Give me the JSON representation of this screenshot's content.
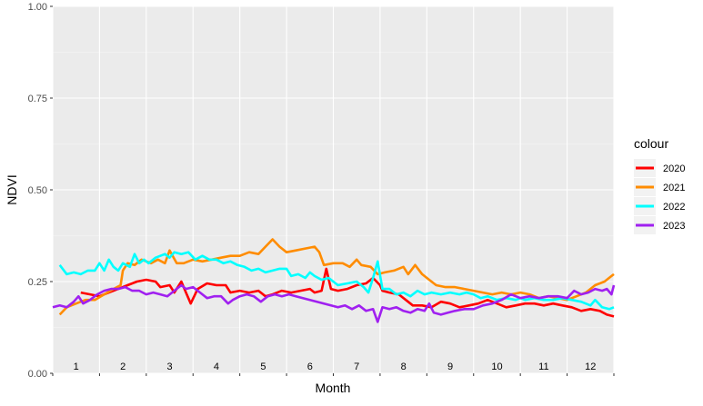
{
  "chart_data": {
    "type": "line",
    "xlabel": "Month",
    "ylabel": "NDVI",
    "ylim": [
      0,
      1
    ],
    "xlim": [
      0,
      12
    ],
    "yticks": [
      {
        "value": 0.0,
        "label": "0.00"
      },
      {
        "value": 0.25,
        "label": "0.25"
      },
      {
        "value": 0.5,
        "label": "0.50"
      },
      {
        "value": 0.75,
        "label": "0.75"
      },
      {
        "value": 1.0,
        "label": "1.00"
      }
    ],
    "month_labels": [
      "1",
      "2",
      "3",
      "4",
      "5",
      "6",
      "7",
      "8",
      "9",
      "10",
      "11",
      "12"
    ],
    "grid": true,
    "legend": {
      "title": "colour",
      "position": "right"
    },
    "series": [
      {
        "name": "2020",
        "color": "#ff0000",
        "points": [
          [
            0.6,
            0.22
          ],
          [
            0.8,
            0.215
          ],
          [
            1.0,
            0.21
          ],
          [
            1.2,
            0.22
          ],
          [
            1.4,
            0.23
          ],
          [
            1.6,
            0.24
          ],
          [
            1.8,
            0.25
          ],
          [
            2.0,
            0.255
          ],
          [
            2.2,
            0.25
          ],
          [
            2.3,
            0.235
          ],
          [
            2.5,
            0.24
          ],
          [
            2.6,
            0.22
          ],
          [
            2.75,
            0.25
          ],
          [
            2.85,
            0.22
          ],
          [
            2.95,
            0.19
          ],
          [
            3.1,
            0.23
          ],
          [
            3.3,
            0.245
          ],
          [
            3.5,
            0.24
          ],
          [
            3.7,
            0.24
          ],
          [
            3.8,
            0.22
          ],
          [
            4.0,
            0.225
          ],
          [
            4.2,
            0.22
          ],
          [
            4.4,
            0.225
          ],
          [
            4.55,
            0.21
          ],
          [
            4.7,
            0.215
          ],
          [
            4.9,
            0.225
          ],
          [
            5.1,
            0.22
          ],
          [
            5.3,
            0.225
          ],
          [
            5.5,
            0.23
          ],
          [
            5.6,
            0.22
          ],
          [
            5.75,
            0.225
          ],
          [
            5.85,
            0.285
          ],
          [
            5.95,
            0.23
          ],
          [
            6.1,
            0.225
          ],
          [
            6.3,
            0.23
          ],
          [
            6.5,
            0.24
          ],
          [
            6.7,
            0.245
          ],
          [
            6.85,
            0.26
          ],
          [
            7.0,
            0.24
          ],
          [
            7.05,
            0.225
          ],
          [
            7.2,
            0.22
          ],
          [
            7.4,
            0.215
          ],
          [
            7.55,
            0.2
          ],
          [
            7.7,
            0.185
          ],
          [
            7.9,
            0.185
          ],
          [
            8.1,
            0.18
          ],
          [
            8.3,
            0.195
          ],
          [
            8.5,
            0.19
          ],
          [
            8.7,
            0.18
          ],
          [
            8.9,
            0.185
          ],
          [
            9.1,
            0.19
          ],
          [
            9.3,
            0.2
          ],
          [
            9.5,
            0.19
          ],
          [
            9.7,
            0.18
          ],
          [
            9.9,
            0.185
          ],
          [
            10.1,
            0.19
          ],
          [
            10.3,
            0.19
          ],
          [
            10.5,
            0.185
          ],
          [
            10.7,
            0.19
          ],
          [
            10.9,
            0.185
          ],
          [
            11.1,
            0.18
          ],
          [
            11.3,
            0.17
          ],
          [
            11.5,
            0.175
          ],
          [
            11.7,
            0.17
          ],
          [
            11.85,
            0.16
          ],
          [
            12.0,
            0.155
          ]
        ]
      },
      {
        "name": "2021",
        "color": "#ff8c00",
        "points": [
          [
            0.15,
            0.16
          ],
          [
            0.3,
            0.18
          ],
          [
            0.5,
            0.19
          ],
          [
            0.7,
            0.2
          ],
          [
            0.9,
            0.2
          ],
          [
            1.1,
            0.215
          ],
          [
            1.3,
            0.23
          ],
          [
            1.45,
            0.24
          ],
          [
            1.5,
            0.28
          ],
          [
            1.6,
            0.3
          ],
          [
            1.75,
            0.295
          ],
          [
            1.9,
            0.31
          ],
          [
            2.1,
            0.3
          ],
          [
            2.25,
            0.31
          ],
          [
            2.4,
            0.3
          ],
          [
            2.5,
            0.335
          ],
          [
            2.65,
            0.3
          ],
          [
            2.8,
            0.3
          ],
          [
            3.0,
            0.31
          ],
          [
            3.2,
            0.305
          ],
          [
            3.4,
            0.31
          ],
          [
            3.6,
            0.315
          ],
          [
            3.8,
            0.32
          ],
          [
            4.0,
            0.32
          ],
          [
            4.2,
            0.33
          ],
          [
            4.4,
            0.325
          ],
          [
            4.55,
            0.345
          ],
          [
            4.7,
            0.365
          ],
          [
            4.85,
            0.345
          ],
          [
            5.0,
            0.33
          ],
          [
            5.2,
            0.335
          ],
          [
            5.4,
            0.34
          ],
          [
            5.6,
            0.345
          ],
          [
            5.7,
            0.33
          ],
          [
            5.8,
            0.295
          ],
          [
            6.0,
            0.3
          ],
          [
            6.2,
            0.3
          ],
          [
            6.35,
            0.29
          ],
          [
            6.5,
            0.31
          ],
          [
            6.6,
            0.295
          ],
          [
            6.8,
            0.29
          ],
          [
            6.95,
            0.27
          ],
          [
            7.1,
            0.275
          ],
          [
            7.3,
            0.28
          ],
          [
            7.5,
            0.29
          ],
          [
            7.6,
            0.27
          ],
          [
            7.75,
            0.295
          ],
          [
            7.9,
            0.27
          ],
          [
            8.05,
            0.255
          ],
          [
            8.2,
            0.24
          ],
          [
            8.4,
            0.235
          ],
          [
            8.6,
            0.235
          ],
          [
            8.8,
            0.23
          ],
          [
            9.0,
            0.225
          ],
          [
            9.2,
            0.22
          ],
          [
            9.4,
            0.215
          ],
          [
            9.6,
            0.22
          ],
          [
            9.8,
            0.215
          ],
          [
            10.0,
            0.22
          ],
          [
            10.2,
            0.215
          ],
          [
            10.4,
            0.205
          ],
          [
            10.6,
            0.21
          ],
          [
            10.8,
            0.205
          ],
          [
            11.0,
            0.2
          ],
          [
            11.2,
            0.21
          ],
          [
            11.4,
            0.22
          ],
          [
            11.6,
            0.24
          ],
          [
            11.8,
            0.25
          ],
          [
            11.95,
            0.265
          ],
          [
            12.0,
            0.27
          ]
        ]
      },
      {
        "name": "2022",
        "color": "#00ffff",
        "points": [
          [
            0.15,
            0.295
          ],
          [
            0.3,
            0.27
          ],
          [
            0.45,
            0.275
          ],
          [
            0.6,
            0.27
          ],
          [
            0.75,
            0.28
          ],
          [
            0.9,
            0.28
          ],
          [
            1.0,
            0.3
          ],
          [
            1.1,
            0.28
          ],
          [
            1.2,
            0.31
          ],
          [
            1.3,
            0.29
          ],
          [
            1.4,
            0.28
          ],
          [
            1.5,
            0.3
          ],
          [
            1.65,
            0.29
          ],
          [
            1.75,
            0.325
          ],
          [
            1.85,
            0.3
          ],
          [
            1.95,
            0.31
          ],
          [
            2.05,
            0.3
          ],
          [
            2.2,
            0.315
          ],
          [
            2.4,
            0.325
          ],
          [
            2.5,
            0.315
          ],
          [
            2.6,
            0.33
          ],
          [
            2.75,
            0.325
          ],
          [
            2.9,
            0.33
          ],
          [
            3.05,
            0.31
          ],
          [
            3.2,
            0.32
          ],
          [
            3.35,
            0.31
          ],
          [
            3.5,
            0.31
          ],
          [
            3.65,
            0.3
          ],
          [
            3.8,
            0.305
          ],
          [
            3.95,
            0.295
          ],
          [
            4.1,
            0.29
          ],
          [
            4.25,
            0.28
          ],
          [
            4.4,
            0.285
          ],
          [
            4.55,
            0.275
          ],
          [
            4.7,
            0.28
          ],
          [
            4.85,
            0.285
          ],
          [
            5.0,
            0.285
          ],
          [
            5.1,
            0.265
          ],
          [
            5.25,
            0.27
          ],
          [
            5.4,
            0.26
          ],
          [
            5.5,
            0.275
          ],
          [
            5.6,
            0.265
          ],
          [
            5.75,
            0.255
          ],
          [
            5.9,
            0.26
          ],
          [
            6.0,
            0.25
          ],
          [
            6.1,
            0.24
          ],
          [
            6.3,
            0.245
          ],
          [
            6.5,
            0.25
          ],
          [
            6.65,
            0.235
          ],
          [
            6.75,
            0.22
          ],
          [
            6.85,
            0.26
          ],
          [
            6.95,
            0.305
          ],
          [
            7.05,
            0.23
          ],
          [
            7.2,
            0.23
          ],
          [
            7.35,
            0.215
          ],
          [
            7.5,
            0.22
          ],
          [
            7.65,
            0.21
          ],
          [
            7.8,
            0.225
          ],
          [
            7.95,
            0.215
          ],
          [
            8.1,
            0.22
          ],
          [
            8.3,
            0.215
          ],
          [
            8.5,
            0.22
          ],
          [
            8.7,
            0.215
          ],
          [
            8.85,
            0.22
          ],
          [
            9.0,
            0.215
          ],
          [
            9.15,
            0.205
          ],
          [
            9.3,
            0.21
          ],
          [
            9.5,
            0.2
          ],
          [
            9.7,
            0.205
          ],
          [
            9.9,
            0.2
          ],
          [
            10.0,
            0.205
          ],
          [
            10.1,
            0.2
          ],
          [
            10.3,
            0.205
          ],
          [
            10.5,
            0.2
          ],
          [
            10.7,
            0.2
          ],
          [
            10.9,
            0.205
          ],
          [
            11.1,
            0.2
          ],
          [
            11.3,
            0.195
          ],
          [
            11.5,
            0.185
          ],
          [
            11.6,
            0.2
          ],
          [
            11.75,
            0.18
          ],
          [
            11.9,
            0.175
          ],
          [
            12.0,
            0.18
          ]
        ]
      },
      {
        "name": "2023",
        "color": "#a020f0",
        "points": [
          [
            0.0,
            0.18
          ],
          [
            0.15,
            0.185
          ],
          [
            0.3,
            0.18
          ],
          [
            0.45,
            0.195
          ],
          [
            0.55,
            0.21
          ],
          [
            0.65,
            0.19
          ],
          [
            0.8,
            0.2
          ],
          [
            0.95,
            0.215
          ],
          [
            1.1,
            0.225
          ],
          [
            1.25,
            0.23
          ],
          [
            1.4,
            0.23
          ],
          [
            1.55,
            0.235
          ],
          [
            1.7,
            0.225
          ],
          [
            1.85,
            0.225
          ],
          [
            2.0,
            0.215
          ],
          [
            2.15,
            0.22
          ],
          [
            2.3,
            0.215
          ],
          [
            2.45,
            0.21
          ],
          [
            2.6,
            0.225
          ],
          [
            2.75,
            0.24
          ],
          [
            2.85,
            0.23
          ],
          [
            3.0,
            0.235
          ],
          [
            3.15,
            0.22
          ],
          [
            3.3,
            0.205
          ],
          [
            3.45,
            0.21
          ],
          [
            3.6,
            0.21
          ],
          [
            3.75,
            0.19
          ],
          [
            3.85,
            0.2
          ],
          [
            4.0,
            0.21
          ],
          [
            4.15,
            0.215
          ],
          [
            4.3,
            0.21
          ],
          [
            4.45,
            0.195
          ],
          [
            4.6,
            0.21
          ],
          [
            4.75,
            0.215
          ],
          [
            4.9,
            0.21
          ],
          [
            5.05,
            0.215
          ],
          [
            5.2,
            0.21
          ],
          [
            5.35,
            0.205
          ],
          [
            5.5,
            0.2
          ],
          [
            5.65,
            0.195
          ],
          [
            5.8,
            0.19
          ],
          [
            5.95,
            0.185
          ],
          [
            6.1,
            0.18
          ],
          [
            6.25,
            0.185
          ],
          [
            6.4,
            0.175
          ],
          [
            6.55,
            0.185
          ],
          [
            6.7,
            0.17
          ],
          [
            6.85,
            0.175
          ],
          [
            6.95,
            0.14
          ],
          [
            7.05,
            0.18
          ],
          [
            7.2,
            0.175
          ],
          [
            7.35,
            0.18
          ],
          [
            7.5,
            0.17
          ],
          [
            7.65,
            0.165
          ],
          [
            7.8,
            0.175
          ],
          [
            7.95,
            0.17
          ],
          [
            8.05,
            0.19
          ],
          [
            8.15,
            0.165
          ],
          [
            8.3,
            0.16
          ],
          [
            8.45,
            0.165
          ],
          [
            8.6,
            0.17
          ],
          [
            8.8,
            0.175
          ],
          [
            9.0,
            0.175
          ],
          [
            9.2,
            0.185
          ],
          [
            9.4,
            0.19
          ],
          [
            9.6,
            0.2
          ],
          [
            9.8,
            0.215
          ],
          [
            10.0,
            0.205
          ],
          [
            10.2,
            0.21
          ],
          [
            10.4,
            0.205
          ],
          [
            10.6,
            0.21
          ],
          [
            10.8,
            0.21
          ],
          [
            11.0,
            0.205
          ],
          [
            11.15,
            0.225
          ],
          [
            11.3,
            0.215
          ],
          [
            11.45,
            0.22
          ],
          [
            11.6,
            0.23
          ],
          [
            11.75,
            0.225
          ],
          [
            11.85,
            0.23
          ],
          [
            11.95,
            0.215
          ],
          [
            12.0,
            0.24
          ]
        ]
      }
    ]
  }
}
